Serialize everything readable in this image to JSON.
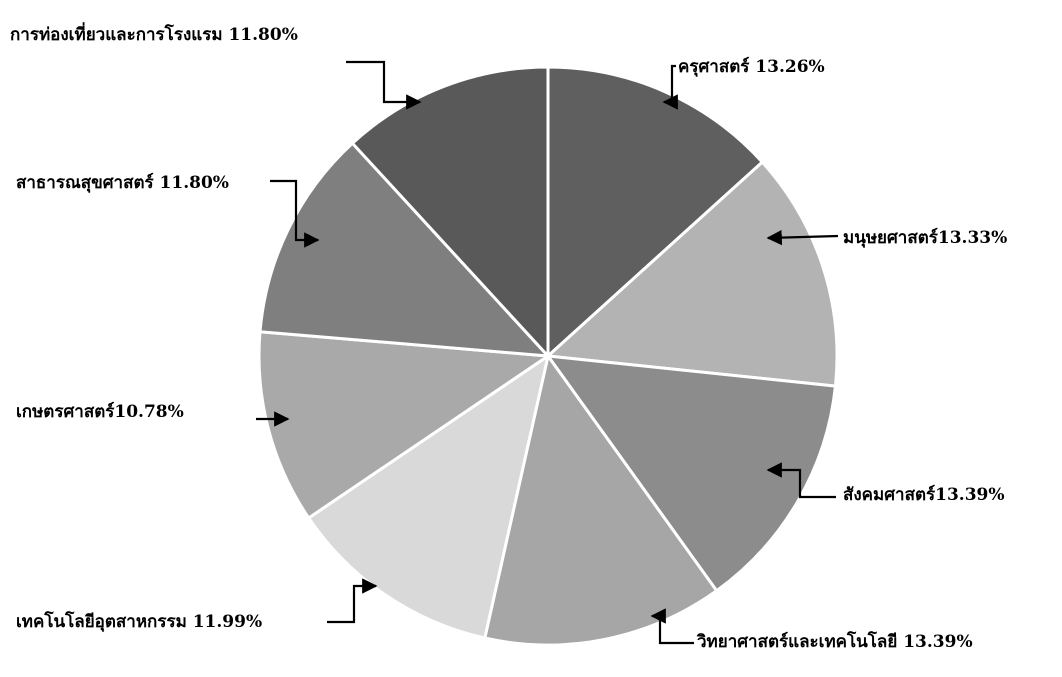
{
  "chart_data": {
    "type": "pie",
    "title": "",
    "slices": [
      {
        "label": "ครุศาสตร์ 13.26%",
        "value": 13.26,
        "color": "#5f5f5f"
      },
      {
        "label": "มนุษยศาสตร์13.33%",
        "value": 13.33,
        "color": "#b3b3b3"
      },
      {
        "label": "สังคมศาสตร์13.39%",
        "value": 13.39,
        "color": "#8c8c8c"
      },
      {
        "label": "วิทยาศาสตร์และเทคโนโลยี 13.39%",
        "value": 13.39,
        "color": "#a6a6a6"
      },
      {
        "label": "เทคโนโลยีอุตสาหกรรม 11.99%",
        "value": 11.99,
        "color": "#d9d9d9"
      },
      {
        "label": "เกษตรศาสตร์10.78%",
        "value": 10.78,
        "color": "#a9a9a9"
      },
      {
        "label": "สาธารณสุขศาสตร์ 11.80%",
        "value": 11.8,
        "color": "#7f7f7f"
      },
      {
        "label": "การท่องเที่ยวและการโรงแรม 11.80%",
        "value": 11.8,
        "color": "#595959"
      }
    ],
    "start_angle": "12 o'clock",
    "direction": "clockwise",
    "slice_border_color": "#ffffff",
    "legend": "none (callout labels with arrows)"
  }
}
